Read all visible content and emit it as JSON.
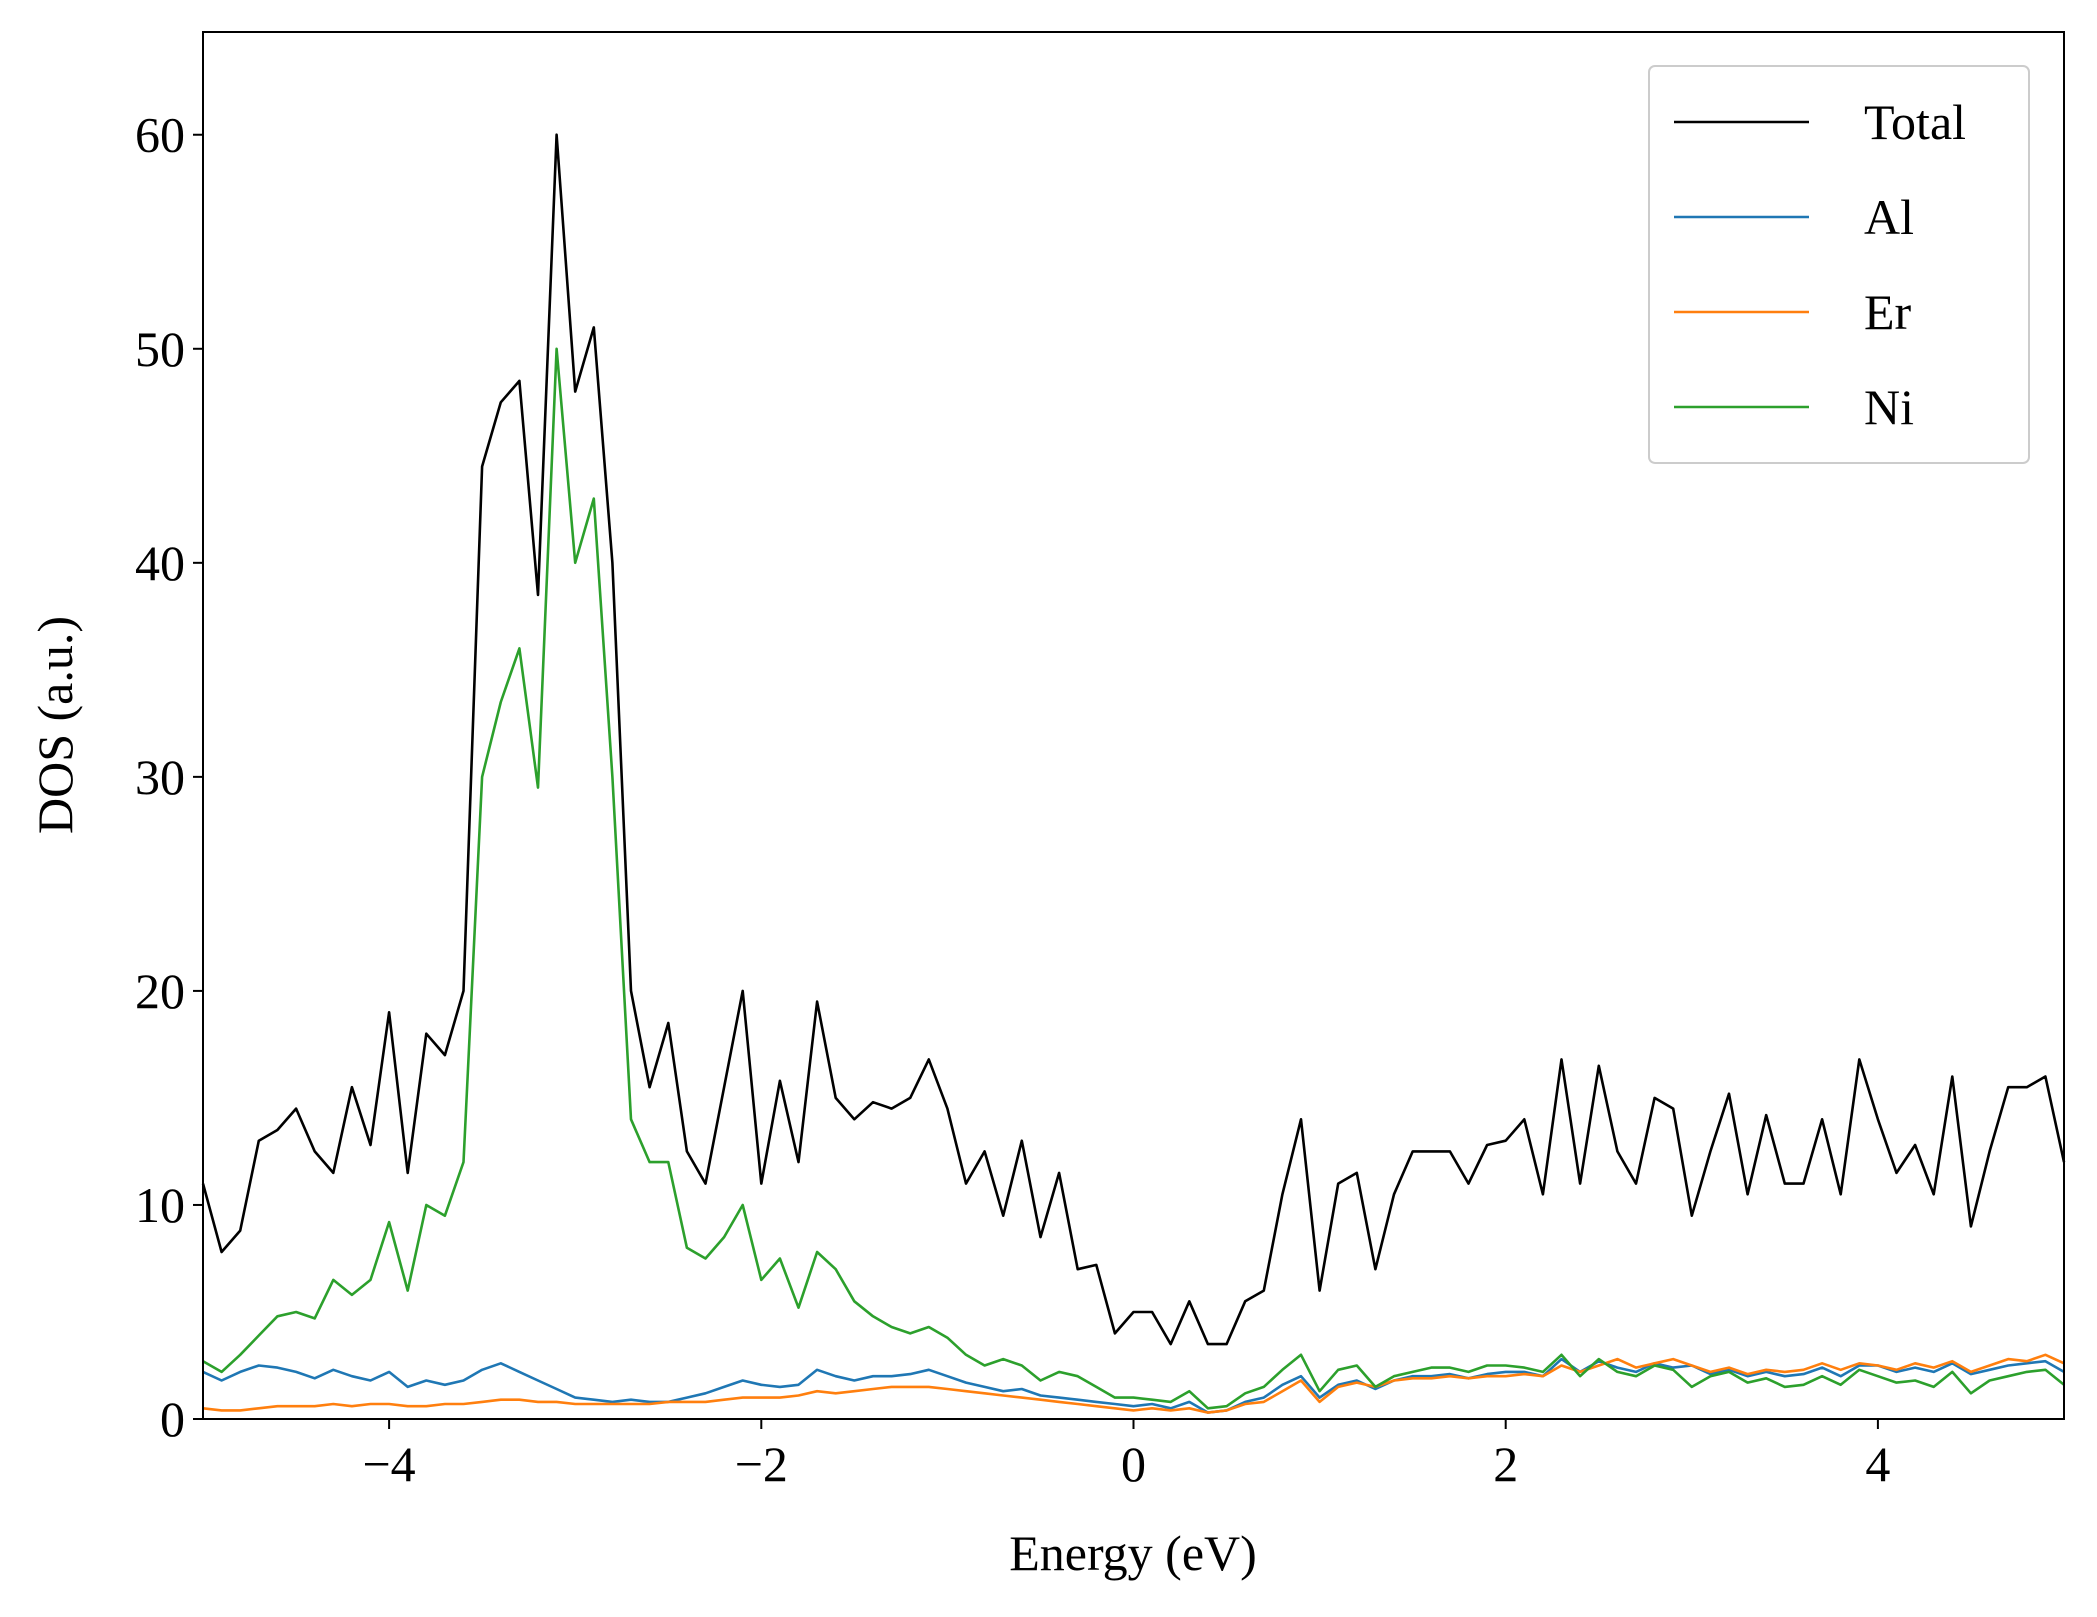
{
  "chart_data": {
    "type": "line",
    "xlabel": "Energy (eV)",
    "ylabel": "DOS (a.u.)",
    "xlim": [
      -5,
      5
    ],
    "ylim": [
      0,
      64.8
    ],
    "xticks": [
      {
        "value": -4,
        "label": "−4"
      },
      {
        "value": -2,
        "label": "−2"
      },
      0,
      2,
      4
    ],
    "yticks": [
      0,
      10,
      20,
      30,
      40,
      50,
      60
    ],
    "legend": "upper right",
    "x": [
      -5,
      -4.9,
      -4.8,
      -4.7,
      -4.6,
      -4.5,
      -4.4,
      -4.3,
      -4.2,
      -4.1,
      -4,
      -3.9,
      -3.8,
      -3.7,
      -3.6,
      -3.5,
      -3.4,
      -3.3,
      -3.2,
      -3.1,
      -3,
      -2.9,
      -2.8,
      -2.7,
      -2.6,
      -2.5,
      -2.4,
      -2.3,
      -2.2,
      -2.1,
      -2,
      -1.9,
      -1.8,
      -1.7,
      -1.6,
      -1.5,
      -1.4,
      -1.3,
      -1.2,
      -1.1,
      -1,
      -0.9,
      -0.8,
      -0.7,
      -0.6,
      -0.5,
      -0.4,
      -0.3,
      -0.2,
      -0.1,
      0,
      0.1,
      0.2,
      0.3,
      0.4,
      0.5,
      0.6,
      0.7,
      0.8,
      0.9,
      1,
      1.1,
      1.2,
      1.3,
      1.4,
      1.5,
      1.6,
      1.7,
      1.8,
      1.9,
      2,
      2.1,
      2.2,
      2.3,
      2.4,
      2.5,
      2.6,
      2.7,
      2.8,
      2.9,
      3,
      3.1,
      3.2,
      3.3,
      3.4,
      3.5,
      3.6,
      3.7,
      3.8,
      3.9,
      4,
      4.1,
      4.2,
      4.3,
      4.4,
      4.5,
      4.6,
      4.7,
      4.8,
      4.9,
      5
    ],
    "series": [
      {
        "name": "Total",
        "color": "#000000",
        "values": [
          11,
          7.8,
          8.8,
          13,
          13.5,
          14.5,
          12.5,
          11.5,
          15.5,
          12.8,
          19,
          11.5,
          18,
          17,
          20,
          44.5,
          47.5,
          48.5,
          38.5,
          60,
          48,
          51,
          40,
          20,
          15.5,
          18.5,
          12.5,
          11,
          15.5,
          20,
          11,
          15.8,
          12,
          19.5,
          15,
          14,
          14.8,
          14.5,
          15,
          16.8,
          14.5,
          11,
          12.5,
          9.5,
          13,
          8.5,
          11.5,
          7,
          7.2,
          4,
          5,
          5,
          3.5,
          5.5,
          3.5,
          3.5,
          5.5,
          6,
          10.5,
          14,
          6,
          11,
          11.5,
          7,
          10.5,
          12.5,
          12.5,
          12.5,
          11,
          12.8,
          13,
          14,
          10.5,
          16.8,
          11,
          16.5,
          12.5,
          11,
          15,
          14.5,
          9.5,
          12.5,
          15.2,
          10.5,
          14.2,
          11,
          11,
          14,
          10.5,
          16.8,
          14,
          11.5,
          12.8,
          10.5,
          16,
          9,
          12.5,
          15.5,
          15.5,
          16,
          12
        ]
      },
      {
        "name": "Al",
        "color": "#1f77b4",
        "values": [
          2.2,
          1.8,
          2.2,
          2.5,
          2.4,
          2.2,
          1.9,
          2.3,
          2,
          1.8,
          2.2,
          1.5,
          1.8,
          1.6,
          1.8,
          2.3,
          2.6,
          2.2,
          1.8,
          1.4,
          1,
          0.9,
          0.8,
          0.9,
          0.8,
          0.8,
          1,
          1.2,
          1.5,
          1.8,
          1.6,
          1.5,
          1.6,
          2.3,
          2,
          1.8,
          2,
          2,
          2.1,
          2.3,
          2,
          1.7,
          1.5,
          1.3,
          1.4,
          1.1,
          1,
          0.9,
          0.8,
          0.7,
          0.6,
          0.7,
          0.5,
          0.8,
          0.3,
          0.4,
          0.8,
          1,
          1.6,
          2,
          1,
          1.6,
          1.8,
          1.4,
          1.8,
          2,
          2,
          2.1,
          1.9,
          2.1,
          2.2,
          2.2,
          2,
          2.8,
          2.2,
          2.7,
          2.4,
          2.2,
          2.6,
          2.4,
          2.5,
          2.1,
          2.3,
          2,
          2.2,
          2,
          2.1,
          2.4,
          2,
          2.5,
          2.5,
          2.2,
          2.4,
          2.2,
          2.6,
          2.1,
          2.3,
          2.5,
          2.6,
          2.7,
          2.2
        ]
      },
      {
        "name": "Er",
        "color": "#ff7f0e",
        "values": [
          0.5,
          0.4,
          0.4,
          0.5,
          0.6,
          0.6,
          0.6,
          0.7,
          0.6,
          0.7,
          0.7,
          0.6,
          0.6,
          0.7,
          0.7,
          0.8,
          0.9,
          0.9,
          0.8,
          0.8,
          0.7,
          0.7,
          0.7,
          0.7,
          0.7,
          0.8,
          0.8,
          0.8,
          0.9,
          1,
          1,
          1,
          1.1,
          1.3,
          1.2,
          1.3,
          1.4,
          1.5,
          1.5,
          1.5,
          1.4,
          1.3,
          1.2,
          1.1,
          1,
          0.9,
          0.8,
          0.7,
          0.6,
          0.5,
          0.4,
          0.5,
          0.4,
          0.5,
          0.3,
          0.4,
          0.7,
          0.8,
          1.3,
          1.8,
          0.8,
          1.5,
          1.7,
          1.5,
          1.8,
          1.9,
          1.9,
          2,
          1.9,
          2,
          2,
          2.1,
          2,
          2.5,
          2.2,
          2.5,
          2.8,
          2.4,
          2.6,
          2.8,
          2.5,
          2.2,
          2.4,
          2.1,
          2.3,
          2.2,
          2.3,
          2.6,
          2.3,
          2.6,
          2.5,
          2.3,
          2.6,
          2.4,
          2.7,
          2.2,
          2.5,
          2.8,
          2.7,
          3,
          2.6
        ]
      },
      {
        "name": "Ni",
        "color": "#2ca02c",
        "values": [
          2.7,
          2.2,
          3,
          3.9,
          4.8,
          5,
          4.7,
          6.5,
          5.8,
          6.5,
          9.2,
          6,
          10,
          9.5,
          12,
          30,
          33.5,
          36,
          29.5,
          50,
          40,
          43,
          30,
          14,
          12,
          12,
          8,
          7.5,
          8.5,
          10,
          6.5,
          7.5,
          5.2,
          7.8,
          7,
          5.5,
          4.8,
          4.3,
          4,
          4.3,
          3.8,
          3,
          2.5,
          2.8,
          2.5,
          1.8,
          2.2,
          2,
          1.5,
          1,
          1,
          0.9,
          0.8,
          1.3,
          0.5,
          0.6,
          1.2,
          1.5,
          2.3,
          3,
          1.3,
          2.3,
          2.5,
          1.5,
          2,
          2.2,
          2.4,
          2.4,
          2.2,
          2.5,
          2.5,
          2.4,
          2.2,
          3,
          2,
          2.8,
          2.2,
          2,
          2.5,
          2.3,
          1.5,
          2,
          2.2,
          1.7,
          1.9,
          1.5,
          1.6,
          2,
          1.6,
          2.3,
          2,
          1.7,
          1.8,
          1.5,
          2.2,
          1.2,
          1.8,
          2,
          2.2,
          2.3,
          1.6
        ]
      }
    ]
  }
}
